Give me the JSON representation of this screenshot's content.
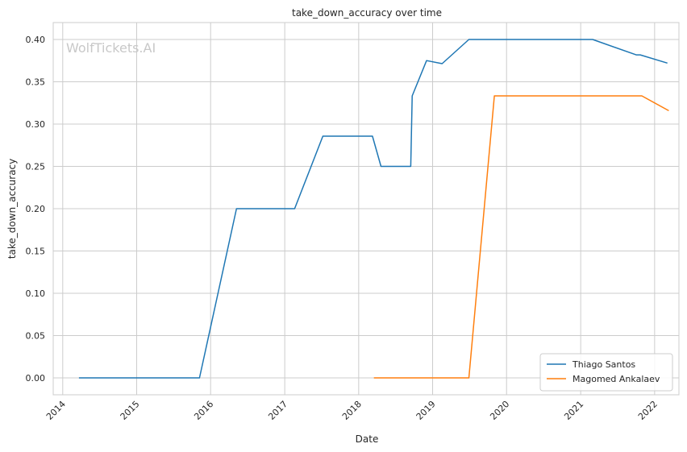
{
  "chart_data": {
    "type": "line",
    "title": "take_down_accuracy over time",
    "xlabel": "Date",
    "ylabel": "take_down_accuracy",
    "watermark": "WolfTickets.AI",
    "xlim": [
      "2013-11-15",
      "2022-05-01"
    ],
    "ylim": [
      -0.02,
      0.42
    ],
    "x_ticks": [
      "2014",
      "2015",
      "2016",
      "2017",
      "2018",
      "2019",
      "2020",
      "2021",
      "2022"
    ],
    "y_ticks": [
      "0.00",
      "0.05",
      "0.10",
      "0.15",
      "0.20",
      "0.25",
      "0.30",
      "0.35",
      "0.40"
    ],
    "grid": true,
    "legend_position": "bottom-right",
    "series": [
      {
        "name": "Thiago Santos",
        "color": "#1f77b4",
        "points": [
          [
            "2014-03-22",
            0.0
          ],
          [
            "2015-11-07",
            0.0
          ],
          [
            "2016-05-08",
            0.2
          ],
          [
            "2017-02-19",
            0.2
          ],
          [
            "2017-07-08",
            0.2857
          ],
          [
            "2018-03-10",
            0.2857
          ],
          [
            "2018-04-21",
            0.25
          ],
          [
            "2018-09-15",
            0.25
          ],
          [
            "2018-09-22",
            0.3333
          ],
          [
            "2018-12-02",
            0.375
          ],
          [
            "2019-02-17",
            0.3714
          ],
          [
            "2019-06-29",
            0.4
          ],
          [
            "2021-03-01",
            0.4
          ],
          [
            "2021-10-02",
            0.3818
          ],
          [
            "2021-10-22",
            0.3818
          ],
          [
            "2022-03-05",
            0.3721
          ]
        ]
      },
      {
        "name": "Magomed Ankalaev",
        "color": "#ff7f0e",
        "points": [
          [
            "2018-03-17",
            0.0
          ],
          [
            "2019-06-29",
            0.0
          ],
          [
            "2019-11-02",
            0.3333
          ],
          [
            "2021-10-30",
            0.3333
          ],
          [
            "2022-03-12",
            0.3158
          ]
        ]
      }
    ]
  }
}
